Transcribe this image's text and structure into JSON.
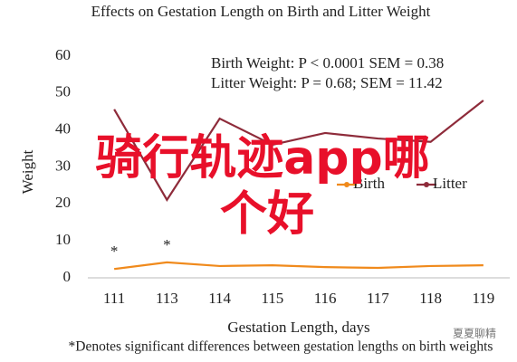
{
  "chart_data": {
    "type": "line",
    "title": "Effects on Gestation Length on Birth and Litter Weight",
    "annotations": [
      "Birth Weight: P < 0.0001 SEM = 0.38",
      "Litter Weight: P = 0.68; SEM = 11.42"
    ],
    "significance_labels": [
      "*",
      "*"
    ],
    "x_label": "Gestation Length, days",
    "y_label": "Weight",
    "footnote": "*Denotes significant differences between gestation lengths on birth weights",
    "categories": [
      "111",
      "113",
      "114",
      "115",
      "116",
      "117",
      "118",
      "119"
    ],
    "series": [
      {
        "name": "Birth",
        "color": "#f08a1c",
        "values": [
          2.4,
          4.2,
          3.2,
          3.4,
          2.9,
          2.7,
          3.2,
          3.4
        ]
      },
      {
        "name": "Litter",
        "color": "#8e2b3a",
        "values": [
          45.6,
          21.1,
          43.1,
          36.0,
          39.2,
          37.7,
          36.8,
          48.0
        ]
      }
    ],
    "ylim": [
      0,
      60
    ],
    "yticks": [
      0,
      10,
      20,
      30,
      40,
      50,
      60
    ],
    "grid": false,
    "overlay_text": [
      "骑行轨迹app哪",
      "个好"
    ],
    "watermark": "夏夏聊精"
  }
}
